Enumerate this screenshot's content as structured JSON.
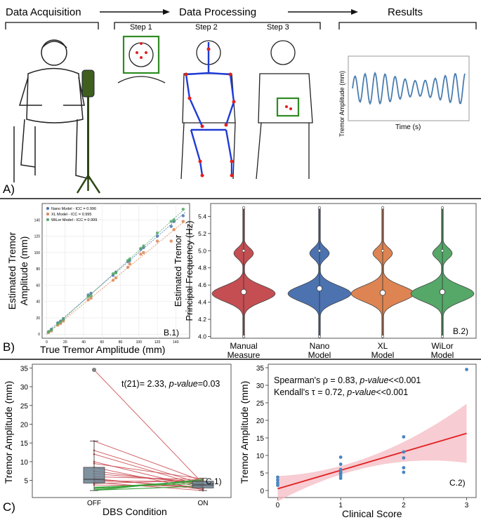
{
  "panelA": {
    "stage1": "Data Acquisition",
    "stage2": "Data Processing",
    "stage3": "Results",
    "step1": "Step 1",
    "step2": "Step 2",
    "step3": "Step 3",
    "ylabel": "Tremor Amplitude (mm)",
    "xlabel": "Time (s)",
    "panel_label": "A)"
  },
  "panelB": {
    "panel_label": "B)",
    "b1": {
      "label": "B.1)",
      "xlabel": "True Tremor Amplitude (mm)",
      "ylabel_line1": "Estimated Tremor",
      "ylabel_line2": "Amplitude (mm)",
      "legend": [
        "Nano Model - ICC = 0.996",
        "XL Model - ICC = 0.995",
        "WiLor Model - ICC = 0.999"
      ],
      "colors": [
        "#4c72b0",
        "#dd8452",
        "#55a868"
      ],
      "xticks": [
        "0",
        "20",
        "40",
        "60",
        "80",
        "100",
        "120",
        "140"
      ],
      "yticks": [
        "0",
        "20",
        "40",
        "60",
        "80",
        "100",
        "120",
        "140"
      ]
    },
    "b2": {
      "label": "B.2)",
      "ylabel_line1": "Estimated Tremor",
      "ylabel_line2": "Principal Frequency (Hz)",
      "yticks": [
        "4.0",
        "4.2",
        "4.4",
        "4.6",
        "4.8",
        "5.0",
        "5.2",
        "5.4"
      ],
      "groups": [
        {
          "line1": "Manual",
          "line2": "Measure",
          "color": "#c44e52"
        },
        {
          "line1": "Nano",
          "line2": "Model",
          "color": "#4c72b0"
        },
        {
          "line1": "XL",
          "line2": "Model",
          "color": "#dd8452"
        },
        {
          "line1": "WiLor",
          "line2": "Model",
          "color": "#55a868"
        }
      ]
    }
  },
  "panelC": {
    "panel_label": "C)",
    "c1": {
      "label": "C.1)",
      "xlabel": "DBS Condition",
      "ylabel": "Tremor Amplitude (mm)",
      "xticks": [
        "OFF",
        "ON"
      ],
      "yticks": [
        "5",
        "10",
        "15",
        "20",
        "25",
        "30",
        "35"
      ],
      "stat_prefix": "t(21)= 2.33, ",
      "stat_italic": "p-value",
      "stat_suffix": "=0.03"
    },
    "c2": {
      "label": "C.2)",
      "xlabel": "Clinical Score",
      "ylabel": "Tremor Amplitude (mm)",
      "xticks": [
        "0",
        "1",
        "2",
        "3"
      ],
      "yticks": [
        "0",
        "5",
        "10",
        "15",
        "20",
        "25",
        "30",
        "35"
      ],
      "stat1_prefix": "Spearman's ρ = 0.83, ",
      "stat1_italic": "p-value",
      "stat1_suffix": "<<0.001",
      "stat2_prefix": "Kendall's τ = 0.72, ",
      "stat2_italic": "p-value",
      "stat2_suffix": "<<0.001"
    }
  },
  "chart_data": [
    {
      "type": "scatter",
      "xlabel": "True Tremor Amplitude (mm)",
      "ylabel": "Estimated Tremor Amplitude (mm)",
      "xlim": [
        -5,
        155
      ],
      "ylim": [
        -5,
        160
      ],
      "series": [
        {
          "name": "Nano Model - ICC = 0.996",
          "x": [
            2,
            5,
            12,
            15,
            18,
            45,
            48,
            72,
            75,
            88,
            90,
            102,
            105,
            120,
            135,
            138,
            148
          ],
          "y": [
            3,
            6,
            14,
            16,
            19,
            48,
            50,
            72,
            76,
            89,
            90,
            104,
            106,
            120,
            132,
            138,
            145
          ]
        },
        {
          "name": "XL Model - ICC = 0.995",
          "x": [
            2,
            5,
            12,
            15,
            18,
            45,
            48,
            72,
            75,
            88,
            90,
            102,
            105,
            120,
            135,
            138,
            148
          ],
          "y": [
            2,
            4,
            11,
            13,
            16,
            42,
            44,
            66,
            69,
            82,
            86,
            98,
            100,
            114,
            114,
            128,
            138
          ]
        },
        {
          "name": "WiLor Model - ICC = 0.999",
          "x": [
            2,
            5,
            12,
            15,
            18,
            45,
            48,
            72,
            75,
            88,
            90,
            102,
            105,
            120,
            135,
            138,
            148
          ],
          "y": [
            3,
            5,
            13,
            15,
            18,
            46,
            47,
            74,
            75,
            90,
            92,
            105,
            108,
            124,
            138,
            140,
            153
          ]
        }
      ]
    },
    {
      "type": "violin",
      "ylabel": "Estimated Tremor Principal Frequency (Hz)",
      "categories": [
        "Manual Measure",
        "Nano Model",
        "XL Model",
        "WiLor Model"
      ],
      "ylim": [
        3.98,
        5.55
      ],
      "medians": [
        4.52,
        4.56,
        4.51,
        4.52
      ],
      "range": [
        4.0,
        5.5
      ]
    },
    {
      "type": "box",
      "xlabel": "DBS Condition",
      "ylabel": "Tremor Amplitude (mm)",
      "categories": [
        "OFF",
        "ON"
      ],
      "ylim": [
        1,
        36
      ],
      "OFF": {
        "q1": 4.3,
        "median": 5.3,
        "q3": 8.5,
        "whisker_low": 2.3,
        "whisker_high": 15.5,
        "outliers": [
          34.5
        ]
      },
      "ON": {
        "q1": 3.0,
        "median": 3.8,
        "q3": 4.8,
        "whisker_low": 2.3,
        "whisker_high": 5.6
      }
    },
    {
      "type": "scatter",
      "xlabel": "Clinical Score",
      "ylabel": "Tremor Amplitude (mm)",
      "xlim": [
        -0.15,
        3.15
      ],
      "ylim": [
        -2,
        36
      ],
      "x": [
        0,
        0,
        0,
        0,
        1,
        1,
        1,
        1,
        1,
        1,
        1,
        1,
        2,
        2,
        2,
        2,
        2,
        3
      ],
      "y": [
        1.5,
        2.2,
        3.0,
        3.8,
        3.5,
        4.2,
        4.8,
        5.3,
        6.0,
        7.5,
        9.5,
        5.0,
        5.2,
        6.5,
        9.3,
        11.0,
        15.3,
        34.5
      ],
      "regression": {
        "x": [
          0,
          3
        ],
        "y": [
          0.5,
          16.3
        ]
      }
    }
  ]
}
